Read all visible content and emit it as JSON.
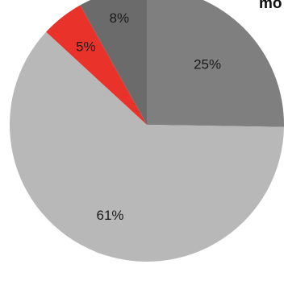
{
  "chart_data": {
    "type": "pie",
    "title_fragment": "mo",
    "slices": [
      {
        "label": "25%",
        "value": 25,
        "color": "#7f7f7f"
      },
      {
        "label": "61%",
        "value": 61,
        "color": "#b8b8b8"
      },
      {
        "label": "5%",
        "value": 5,
        "color": "#e8322a"
      },
      {
        "label": "8%",
        "value": 8,
        "color": "#6b6b6b"
      }
    ],
    "start": "12 o'clock",
    "direction": "clockwise",
    "legend": "none"
  }
}
